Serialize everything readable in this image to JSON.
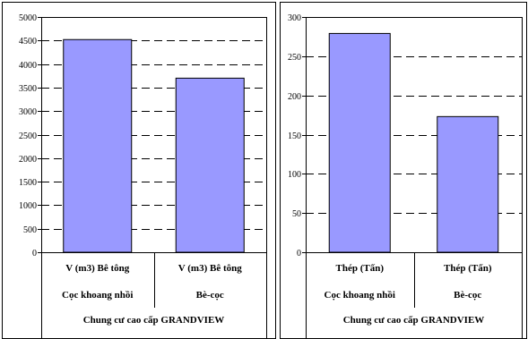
{
  "colors": {
    "bar_fill": "#9999ff",
    "bar_stroke": "#000000",
    "grid": "#000000",
    "panel_border": "#000000"
  },
  "chart_data": [
    {
      "type": "bar",
      "categories": [
        [
          "V (m3) Bê tông",
          "Cọc khoang nhồi"
        ],
        [
          "V (m3) Bê tông",
          "Bè-cọc"
        ]
      ],
      "group_label": "Chung cư cao cấp GRANDVIEW",
      "values": [
        4520,
        3700
      ],
      "ylim": [
        0,
        5000
      ],
      "yticks": [
        "0",
        "500",
        "1000",
        "1500",
        "2000",
        "2500",
        "3000",
        "3500",
        "4000",
        "4500",
        "5000"
      ],
      "grid": "dashed horizontal",
      "legend": "none"
    },
    {
      "type": "bar",
      "categories": [
        [
          "Thép (Tấn)",
          "Cọc khoang nhồi"
        ],
        [
          "Thép (Tấn)",
          "Bè-cọc"
        ]
      ],
      "group_label": "Chung cư cao cấp GRANDVIEW",
      "values": [
        279,
        173
      ],
      "ylim": [
        0,
        300
      ],
      "yticks": [
        "0",
        "50",
        "100",
        "150",
        "200",
        "250",
        "300"
      ],
      "grid": "dashed horizontal",
      "legend": "none"
    }
  ]
}
